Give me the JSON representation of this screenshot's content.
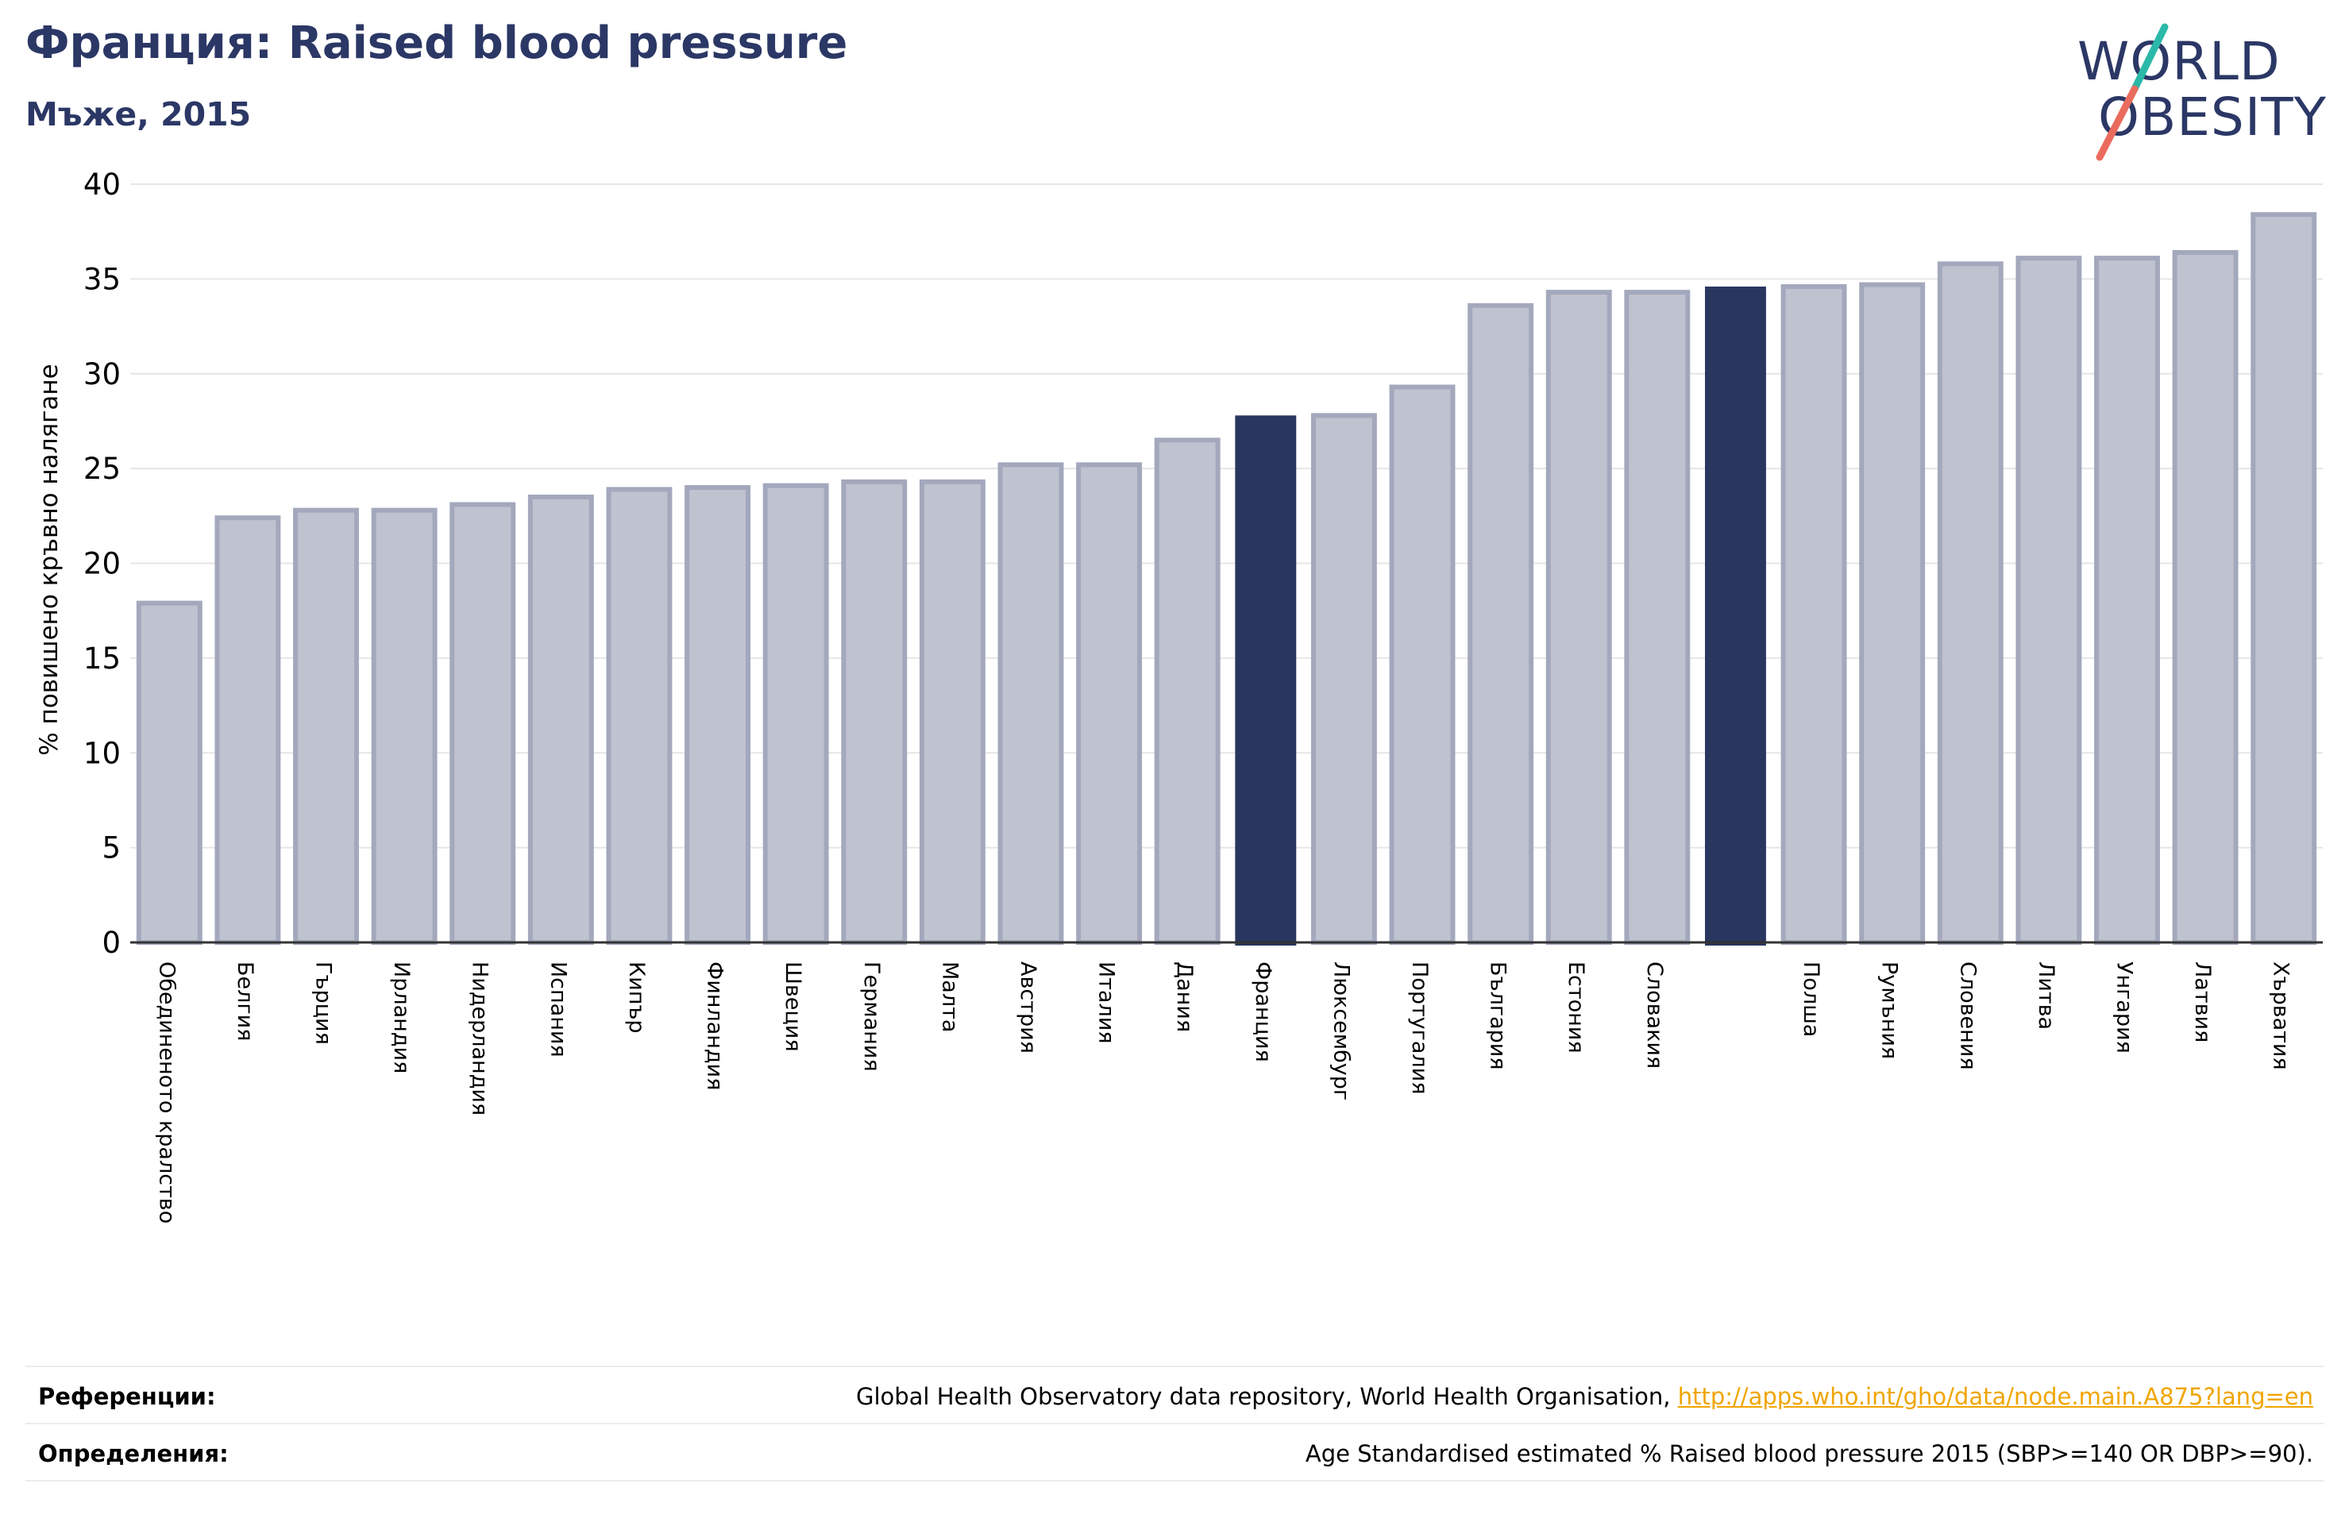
{
  "header": {
    "title": "Франция: Raised blood pressure",
    "subtitle": "Мъже, 2015"
  },
  "logo": {
    "line1": "WORLD",
    "line2": "OBESITY"
  },
  "chart_data": {
    "type": "bar",
    "ylabel": "% повишено кръвно налягане",
    "xlabel": "",
    "ylim": [
      0,
      40
    ],
    "yticks": [
      0,
      5,
      10,
      15,
      20,
      25,
      30,
      35,
      40
    ],
    "grid": true,
    "categories": [
      "Обединеното кралство",
      "Белгия",
      "Гърция",
      "Ирландия",
      "Нидерландия",
      "Испания",
      "Кипър",
      "Финландия",
      "Швеция",
      "Германия",
      "Малта",
      "Австрия",
      "Италия",
      "Дания",
      "Франция",
      "Люксембург",
      "Португалия",
      "България",
      "Естония",
      "Словакия",
      "",
      "Полша",
      "Румъния",
      "Словения",
      "Литва",
      "Унгария",
      "Латвия",
      "Хърватия"
    ],
    "values": [
      17.9,
      22.4,
      22.8,
      22.8,
      23.1,
      23.5,
      23.9,
      24.0,
      24.1,
      24.3,
      24.3,
      25.2,
      25.2,
      26.5,
      27.8,
      27.8,
      29.3,
      33.6,
      34.3,
      34.3,
      34.6,
      34.6,
      34.7,
      35.8,
      36.1,
      36.1,
      36.4,
      38.4
    ],
    "highlighted": [
      "Франция",
      ""
    ],
    "colors": {
      "bar": "#bfc2cf",
      "bar_edge": "#a3a8bd",
      "highlight": "#29365f",
      "grid": "#e6e6e6",
      "axis": "#333333"
    }
  },
  "references": {
    "label": "Референции:",
    "text": "Global Health Observatory data repository, World Health Organisation, ",
    "link": "http://apps.who.int/gho/data/node.main.A875?lang=en"
  },
  "definitions": {
    "label": "Определения:",
    "text": "Age Standardised estimated % Raised blood pressure 2015 (SBP>=140 OR DBP>=90)."
  }
}
